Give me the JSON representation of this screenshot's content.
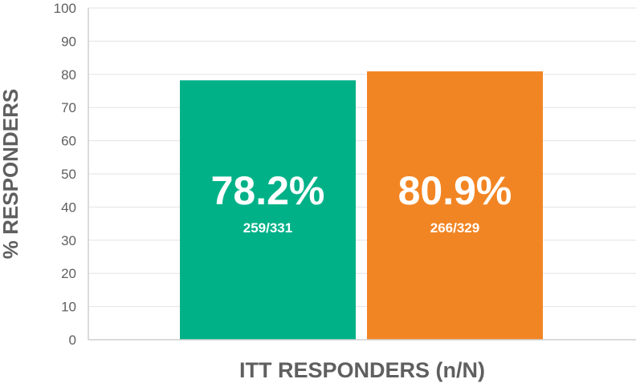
{
  "chart_data": {
    "type": "bar",
    "title": "",
    "xlabel": "ITT RESPONDERS (n/N)",
    "ylabel": "% RESPONDERS",
    "ylim": [
      0,
      100
    ],
    "yticks": [
      0,
      10,
      20,
      30,
      40,
      50,
      60,
      70,
      80,
      90,
      100
    ],
    "grid": true,
    "legend": "none",
    "bars": [
      {
        "value": 78.2,
        "label": "78.2%",
        "sublabel": "259/331",
        "color": "#00b188"
      },
      {
        "value": 80.9,
        "label": "80.9%",
        "sublabel": "266/329",
        "color": "#f28523"
      }
    ]
  }
}
